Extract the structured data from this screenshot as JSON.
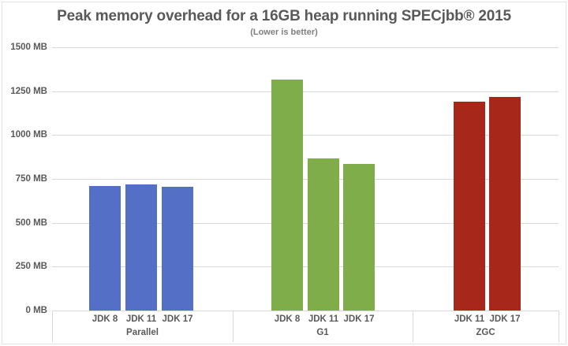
{
  "chart_data": {
    "type": "bar",
    "title": "Peak memory overhead for a 16GB heap running SPECjbb® 2015",
    "subtitle": "(Lower is better)",
    "xlabel": "",
    "ylabel": "",
    "ylim": [
      0,
      1500
    ],
    "y_ticks": [
      "0 MB",
      "250 MB",
      "500 MB",
      "750 MB",
      "1000 MB",
      "1250 MB",
      "1500 MB"
    ],
    "grid": true,
    "legend": "none",
    "groups": [
      {
        "name": "Parallel",
        "color": "#5470C6",
        "categories": [
          "JDK 8",
          "JDK 11",
          "JDK 17"
        ],
        "values": [
          711,
          720,
          707
        ]
      },
      {
        "name": "G1",
        "color": "#7FAD4A",
        "categories": [
          "JDK 8",
          "JDK 11",
          "JDK 17"
        ],
        "values": [
          1317,
          866,
          835
        ]
      },
      {
        "name": "ZGC",
        "color": "#A8271B",
        "categories": [
          "JDK 11",
          "JDK 17"
        ],
        "values": [
          1189,
          1219
        ]
      }
    ]
  }
}
